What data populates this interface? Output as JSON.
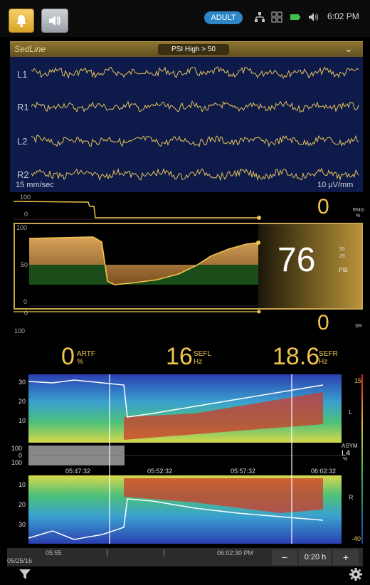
{
  "status": {
    "patient_mode": "ADULT",
    "time": "6:02 PM",
    "icons": [
      "alarm-bell-icon",
      "audio-pause-icon",
      "network-icon",
      "layout-grid-icon",
      "battery-icon",
      "volume-icon"
    ]
  },
  "sedline": {
    "logo": "SedLine",
    "alarm": "PSI High > 50"
  },
  "eeg": {
    "leads": [
      "L1",
      "R1",
      "L2",
      "R2"
    ],
    "sweep_speed": "15 mm/sec",
    "amplitude": "10 µV/mm"
  },
  "emg": {
    "axis_top": "100",
    "axis_bottom": "0",
    "value": "0",
    "unit": "EMG",
    "unit2": "%"
  },
  "psi": {
    "axis_top": "100",
    "axis_mid": "50",
    "axis_bottom": "0",
    "value": "76",
    "label": "PSI",
    "limit_hi": "50",
    "limit_lo": "25"
  },
  "sr": {
    "axis_top": "0",
    "axis_bottom": "100",
    "value": "0",
    "unit": "SR"
  },
  "readouts": {
    "artf_value": "0",
    "artf_label": "ARTF",
    "artf_unit": "%",
    "sefl_value": "16",
    "sefl_label": "SEFL",
    "sefl_unit": "Hz",
    "sefr_value": "18.6",
    "sefr_label": "SEFR",
    "sefr_unit": "Hz"
  },
  "dsa": {
    "left_axis": [
      "30",
      "20",
      "10"
    ],
    "right_axis": [
      "10",
      "20",
      "30"
    ],
    "scale_top": "15",
    "scale_bottom": "-40",
    "left_label": "L",
    "right_label": "R",
    "asym_label": "ASYM",
    "asym_value": "L4",
    "asym_unit": "%",
    "asym_axis": [
      "100",
      "0",
      "100"
    ],
    "times": [
      "05:47:32",
      "05:52:32",
      "05:57:32",
      "06:02:32"
    ]
  },
  "timeline": {
    "start_time": "05:55",
    "date": "05/25/16",
    "end_time": "06:02:30 PM",
    "zoom_minus": "−",
    "zoom_value": "0:20 h",
    "zoom_plus": "+"
  },
  "colors": {
    "accent": "#f0c54e",
    "eeg_bg": "#0d1a4a",
    "adult_badge": "#2f86c7"
  }
}
